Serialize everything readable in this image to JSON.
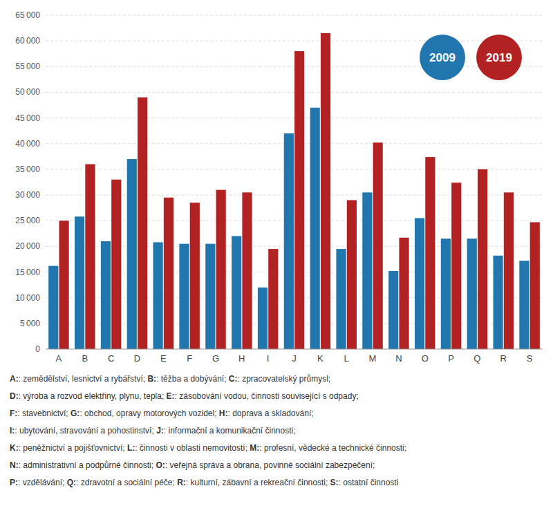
{
  "chart_data": {
    "type": "bar",
    "categories": [
      "A",
      "B",
      "C",
      "D",
      "E",
      "F",
      "G",
      "H",
      "I",
      "J",
      "K",
      "L",
      "M",
      "N",
      "O",
      "P",
      "Q",
      "R",
      "S"
    ],
    "series": [
      {
        "name": "2009",
        "color": "#2176ae",
        "values": [
          16200,
          25800,
          21000,
          37000,
          20800,
          20500,
          20500,
          22000,
          12000,
          42000,
          47000,
          19500,
          30500,
          15200,
          25500,
          21500,
          21500,
          18200,
          17200
        ]
      },
      {
        "name": "2019",
        "color": "#b22222",
        "values": [
          25000,
          36000,
          33000,
          49000,
          29500,
          28500,
          31000,
          30500,
          19500,
          58000,
          61500,
          29000,
          40200,
          21700,
          37400,
          32400,
          35000,
          30500,
          24700
        ]
      }
    ],
    "ylim": [
      0,
      65000
    ],
    "yticks": [
      0,
      {
        "value": 5000,
        "label": "5 000"
      },
      {
        "value": 10000,
        "label": "10 000"
      },
      {
        "value": 15000,
        "label": "15 000"
      },
      {
        "value": 20000,
        "label": "20 000"
      },
      {
        "value": 25000,
        "label": "25 000"
      },
      {
        "value": 30000,
        "label": "30 000"
      },
      {
        "value": 35000,
        "label": "35 000"
      },
      {
        "value": 40000,
        "label": "40 000"
      },
      {
        "value": 45000,
        "label": "45 000"
      },
      {
        "value": 50000,
        "label": "50 000"
      },
      {
        "value": 55000,
        "label": "55 000"
      },
      {
        "value": 60000,
        "label": "60 000"
      },
      {
        "value": 65000,
        "label": "65 000"
      }
    ],
    "grid": true,
    "legend": "upper right",
    "annotations": [
      [
        [
          "A:",
          ": zemědělství, lesnictví a rybářství; "
        ],
        [
          "B:",
          ": těžba a dobývání; "
        ],
        [
          "C:",
          ": zpracovatelský průmysl;"
        ]
      ],
      [
        [
          "D:",
          ": výroba a rozvod elektřiny, plynu, tepla; "
        ],
        [
          "E:",
          ": zásobování vodou, činnosti související s odpady;"
        ]
      ],
      [
        [
          "F:",
          ": stavebnictví; "
        ],
        [
          "G:",
          ": obchod, opravy motorových vozidel; "
        ],
        [
          "H:",
          ": doprava a skladování;"
        ]
      ],
      [
        [
          "I:",
          ": ubytování, stravování a pohostinství; "
        ],
        [
          "J:",
          ": informační a komunikační činnosti;"
        ]
      ],
      [
        [
          "K:",
          ": peněžnictví a pojišťovnictví; "
        ],
        [
          "L:",
          ": činnosti v oblasti nemovitostí; "
        ],
        [
          "M:",
          ": profesní, vědecké a technické činnosti;"
        ]
      ],
      [
        [
          "N:",
          ": administrativní a podpůrné činnosti; "
        ],
        [
          "O:",
          ": veřejná správa a obrana, povinné sociální zabezpečení;"
        ]
      ],
      [
        [
          "P:",
          ": vzdělávání; "
        ],
        [
          "Q:",
          ": zdravotní a sociální péče; "
        ],
        [
          "R:",
          ": kulturní, zábavní a rekreační činnosti; "
        ],
        [
          "S:",
          ": ostatní činnosti"
        ]
      ]
    ]
  }
}
